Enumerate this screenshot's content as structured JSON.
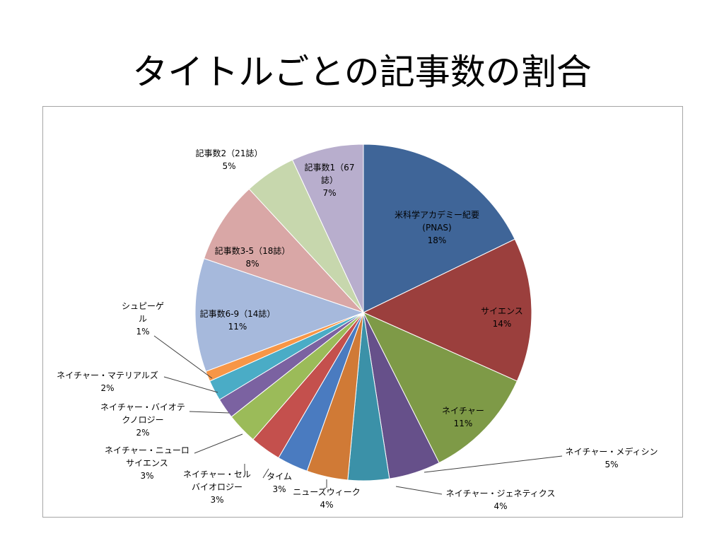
{
  "slide": {
    "title": "タイトルごとの記事数の割合"
  },
  "chart_data": {
    "type": "pie",
    "title": "",
    "slices": [
      {
        "label": "米科学アカデミー紀要\n(PNAS)",
        "value": 18,
        "display": "18%",
        "color": "#3f6598"
      },
      {
        "label": "サイエンス",
        "value": 14,
        "display": "14%",
        "color": "#9b3f3d"
      },
      {
        "label": "ネイチャー",
        "value": 11,
        "display": "11%",
        "color": "#7e9a47"
      },
      {
        "label": "ネイチャー・メディシン",
        "value": 5,
        "display": "5%",
        "color": "#66508a"
      },
      {
        "label": "ネイチャー・ジェネティクス",
        "value": 4,
        "display": "4%",
        "color": "#3b91a8"
      },
      {
        "label": "ニューズウィーク",
        "value": 4,
        "display": "4%",
        "color": "#d07a36"
      },
      {
        "label": "タイム",
        "value": 3,
        "display": "3%",
        "color": "#4a7bc0"
      },
      {
        "label": "ネイチャー・セル\nバイオロジー",
        "value": 3,
        "display": "3%",
        "color": "#c4504d"
      },
      {
        "label": "ネイチャー・ニューロ\nサイエンス",
        "value": 3,
        "display": "3%",
        "color": "#9bbb59"
      },
      {
        "label": "ネイチャー・バイオテ\nクノロジー",
        "value": 2,
        "display": "2%",
        "color": "#7b62a1"
      },
      {
        "label": "ネイチャー・マテリアルズ",
        "value": 2,
        "display": "2%",
        "color": "#4aacc6"
      },
      {
        "label": "シュピーゲ\nル",
        "value": 1,
        "display": "1%",
        "color": "#f79646"
      },
      {
        "label": "記事数6-9（14誌）",
        "value": 11,
        "display": "11%",
        "color": "#a6b9dc"
      },
      {
        "label": "記事数3-5（18誌）",
        "value": 8,
        "display": "8%",
        "color": "#d9a7a6"
      },
      {
        "label": "記事数2（21誌）",
        "value": 5,
        "display": "5%",
        "color": "#c7d7ad"
      },
      {
        "label": "記事数1（67\n誌）",
        "value": 7,
        "display": "7%",
        "color": "#b8aecd"
      }
    ]
  }
}
